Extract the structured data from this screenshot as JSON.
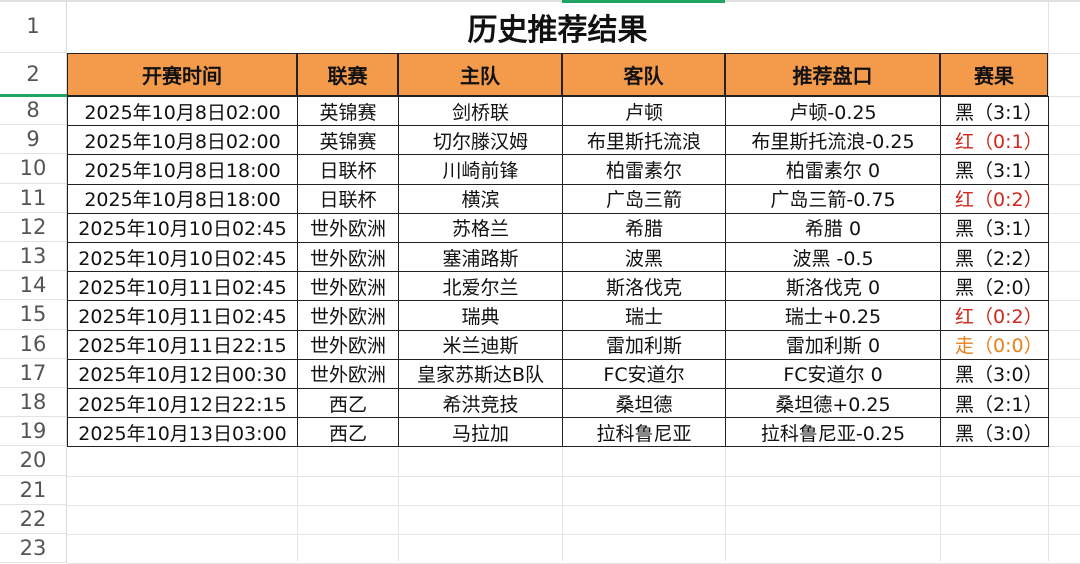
{
  "title": "历史推荐结果",
  "headers": [
    "开赛时间",
    "联赛",
    "主队",
    "客队",
    "推荐盘口",
    "赛果"
  ],
  "row_numbers": [
    "1",
    "2",
    "8",
    "9",
    "10",
    "11",
    "12",
    "13",
    "14",
    "15",
    "16",
    "17",
    "18",
    "19",
    "20",
    "21",
    "22",
    "23"
  ],
  "colors": {
    "header_bg": "#f39a4b",
    "red": "#d0281e",
    "orange": "#e8801a",
    "black": "#111111",
    "selection": "#1fa463"
  },
  "rows": [
    [
      "2025年10月8日02:00",
      "英锦赛",
      "剑桥联",
      "卢顿",
      "卢顿-0.25",
      "黑（3:1）",
      "black"
    ],
    [
      "2025年10月8日02:00",
      "英锦赛",
      "切尔滕汉姆",
      "布里斯托流浪",
      "布里斯托流浪-0.25",
      "红（0:1）",
      "red"
    ],
    [
      "2025年10月8日18:00",
      "日联杯",
      "川崎前锋",
      "柏雷素尔",
      "柏雷素尔 0",
      "黑（3:1）",
      "black"
    ],
    [
      "2025年10月8日18:00",
      "日联杯",
      "横滨",
      "广岛三箭",
      "广岛三箭-0.75",
      "红（0:2）",
      "red"
    ],
    [
      "2025年10月10日02:45",
      "世外欧洲",
      "苏格兰",
      "希腊",
      "希腊 0",
      "黑（3:1）",
      "black"
    ],
    [
      "2025年10月10日02:45",
      "世外欧洲",
      "塞浦路斯",
      "波黑",
      "波黑 -0.5",
      "黑（2:2）",
      "black"
    ],
    [
      "2025年10月11日02:45",
      "世外欧洲",
      "北爱尔兰",
      "斯洛伐克",
      "斯洛伐克 0",
      "黑（2:0）",
      "black"
    ],
    [
      "2025年10月11日02:45",
      "世外欧洲",
      "瑞典",
      "瑞士",
      "瑞士+0.25",
      "红（0:2）",
      "red"
    ],
    [
      "2025年10月11日22:15",
      "世外欧洲",
      "米兰迪斯",
      "雷加利斯",
      "雷加利斯 0",
      "走（0:0）",
      "orange"
    ],
    [
      "2025年10月12日00:30",
      "世外欧洲",
      "皇家苏斯达B队",
      "FC安道尔",
      "FC安道尔 0",
      "黑（3:0）",
      "black"
    ],
    [
      "2025年10月12日22:15",
      "西乙",
      "希洪竞技",
      "桑坦德",
      "桑坦德+0.25",
      "黑（2:1）",
      "black"
    ],
    [
      "2025年10月13日03:00",
      "西乙",
      "马拉加",
      "拉科鲁尼亚",
      "拉科鲁尼亚-0.25",
      "黑（3:0）",
      "black"
    ]
  ]
}
